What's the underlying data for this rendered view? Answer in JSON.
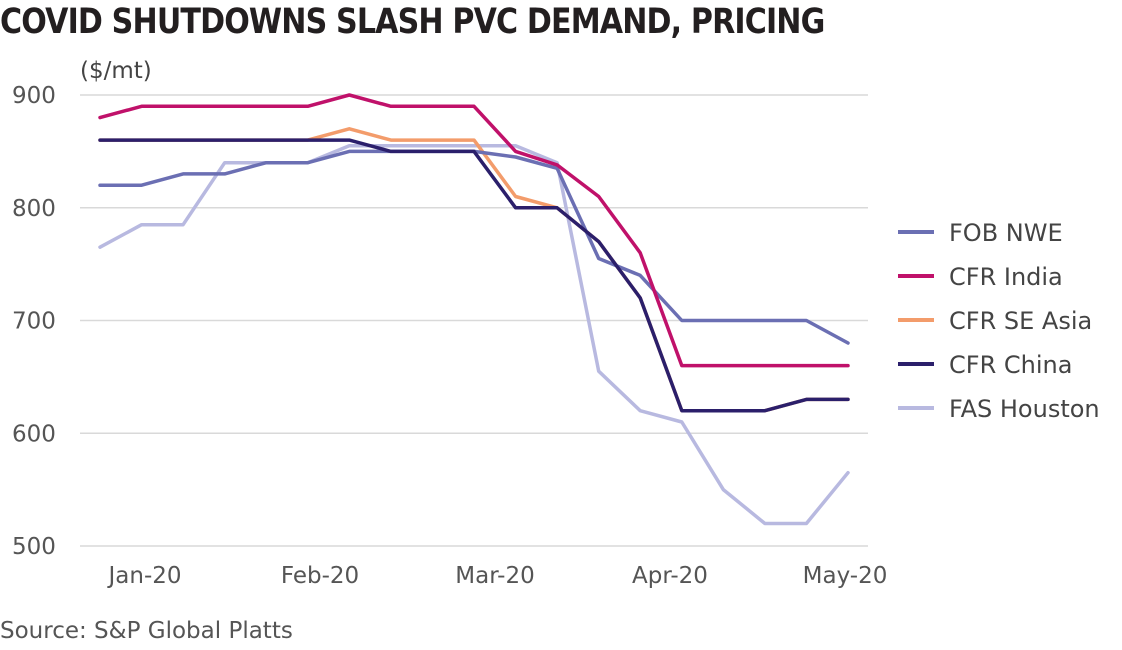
{
  "chart_data": {
    "type": "line",
    "title": "COVID SHUTDOWNS SLASH PVC DEMAND, PRICING",
    "ylabel": "($/mt)",
    "source": "Source: S&P Global Platts",
    "ylim": [
      500,
      900
    ],
    "yticks": [
      900,
      800,
      700,
      600,
      500
    ],
    "xticks": [
      "Jan-20",
      "Feb-20",
      "Mar-20",
      "Apr-20",
      "May-20"
    ],
    "grid": true,
    "legend_position": "right",
    "x": [
      "2020-01-02",
      "2020-01-09",
      "2020-01-16",
      "2020-01-23",
      "2020-01-30",
      "2020-02-06",
      "2020-02-13",
      "2020-02-20",
      "2020-02-27",
      "2020-03-05",
      "2020-03-12",
      "2020-03-19",
      "2020-03-26",
      "2020-04-02",
      "2020-04-09",
      "2020-04-16",
      "2020-04-23",
      "2020-04-30",
      "2020-05-07"
    ],
    "series": [
      {
        "name": "FOB NWE",
        "color": "#6b6fb3",
        "values": [
          820,
          820,
          830,
          830,
          840,
          840,
          850,
          850,
          850,
          850,
          845,
          835,
          755,
          740,
          700,
          700,
          700,
          700,
          680
        ]
      },
      {
        "name": "CFR India",
        "color": "#c0116a",
        "values": [
          880,
          890,
          890,
          890,
          890,
          890,
          900,
          890,
          890,
          890,
          850,
          838,
          810,
          760,
          660,
          660,
          660,
          660,
          660
        ]
      },
      {
        "name": "CFR SE Asia",
        "color": "#f39c6b",
        "values": [
          860,
          860,
          860,
          860,
          860,
          860,
          870,
          860,
          860,
          860,
          810,
          800,
          770,
          720,
          620,
          620,
          620,
          630,
          630
        ]
      },
      {
        "name": "CFR China",
        "color": "#2b1f6b",
        "values": [
          860,
          860,
          860,
          860,
          860,
          860,
          860,
          850,
          850,
          850,
          800,
          800,
          770,
          720,
          620,
          620,
          620,
          630,
          630
        ]
      },
      {
        "name": "FAS Houston",
        "color": "#b8b9e0",
        "values": [
          765,
          785,
          785,
          840,
          840,
          840,
          855,
          855,
          855,
          855,
          855,
          840,
          655,
          620,
          610,
          550,
          520,
          520,
          565
        ]
      }
    ]
  }
}
